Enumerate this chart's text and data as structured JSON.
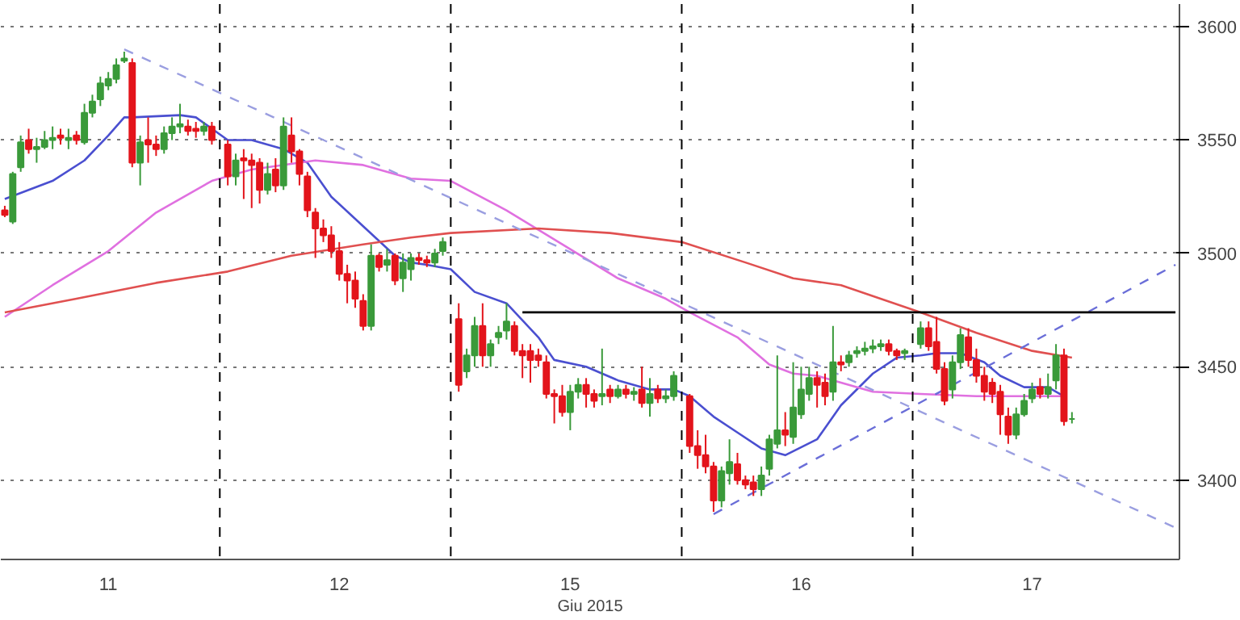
{
  "chart_data": {
    "type": "candlestick",
    "xlabel": "Giu 2015",
    "grid": "y",
    "ylim": [
      3365,
      3610
    ],
    "yticks": [
      3400,
      3450,
      3500,
      3550,
      3600
    ],
    "categories": [
      null,
      null,
      null,
      null,
      null,
      null,
      null,
      null,
      null,
      null,
      null,
      null,
      null,
      "11",
      null,
      null,
      null,
      null,
      null,
      null,
      null,
      null,
      null,
      null,
      null,
      null,
      null,
      null,
      null,
      null,
      null,
      null,
      null,
      null,
      null,
      null,
      null,
      null,
      null,
      null,
      null,
      null,
      "12",
      null,
      null,
      null,
      null,
      null,
      null,
      null,
      null,
      null,
      null,
      null,
      null,
      null,
      null,
      null,
      null,
      null,
      null,
      null,
      null,
      null,
      null,
      null,
      null,
      null,
      null,
      null,
      null,
      "15",
      null,
      null,
      null,
      null,
      null,
      null,
      null,
      null,
      null,
      null,
      null,
      null,
      null,
      null,
      null,
      null,
      null,
      null,
      null,
      null,
      null,
      null,
      null,
      null,
      null,
      null,
      null,
      null,
      "16",
      null,
      null,
      null,
      null,
      null,
      null,
      null,
      null,
      null,
      null,
      null,
      null,
      null,
      null,
      null,
      null,
      null,
      null,
      null,
      null,
      null,
      null,
      null,
      null,
      null,
      null,
      null,
      null,
      "17",
      null,
      null,
      null,
      null,
      null,
      null,
      null,
      null,
      null,
      null,
      null,
      null,
      null,
      null,
      null,
      null,
      null,
      null
    ],
    "ohlc": [
      [
        3519,
        3521,
        3516,
        3517
      ],
      [
        3514,
        3536,
        3513,
        3535
      ],
      [
        3538,
        3552,
        3536,
        3549
      ],
      [
        3550,
        3555,
        3544,
        3546
      ],
      [
        3546,
        3551,
        3540,
        3547
      ],
      [
        3547,
        3554,
        3546,
        3550
      ],
      [
        3550,
        3556,
        3546,
        3551
      ],
      [
        3552,
        3555,
        3548,
        3551
      ],
      [
        3550,
        3555,
        3546,
        3551
      ],
      [
        3552,
        3554,
        3548,
        3550
      ],
      [
        3549,
        3566,
        3548,
        3562
      ],
      [
        3562,
        3570,
        3560,
        3567
      ],
      [
        3568,
        3578,
        3565,
        3575
      ],
      [
        3574,
        3580,
        3572,
        3577
      ],
      [
        3577,
        3586,
        3575,
        3583
      ],
      [
        3585,
        3589,
        3584,
        3586
      ],
      [
        3584,
        3586,
        3538,
        3540
      ],
      [
        3540,
        3552,
        3530,
        3549
      ],
      [
        3550,
        3560,
        3540,
        3548
      ],
      [
        3548,
        3552,
        3543,
        3546
      ],
      [
        3546,
        3556,
        3544,
        3553
      ],
      [
        3553,
        3560,
        3550,
        3556
      ],
      [
        3556,
        3566,
        3553,
        3557
      ],
      [
        3556,
        3559,
        3552,
        3554
      ],
      [
        3555,
        3558,
        3551,
        3554
      ],
      [
        3554,
        3558,
        3552,
        3556
      ],
      [
        3556,
        3558,
        3548,
        3550
      ],
      null,
      [
        3548,
        3550,
        3530,
        3534
      ],
      [
        3534,
        3544,
        3530,
        3541
      ],
      [
        3542,
        3546,
        3524,
        3541
      ],
      [
        3541,
        3544,
        3520,
        3539
      ],
      [
        3540,
        3542,
        3522,
        3528
      ],
      [
        3528,
        3540,
        3526,
        3535
      ],
      [
        3537,
        3542,
        3527,
        3530
      ],
      [
        3530,
        3560,
        3528,
        3556
      ],
      [
        3552,
        3560,
        3540,
        3545
      ],
      [
        3545,
        3546,
        3530,
        3535
      ],
      [
        3534,
        3536,
        3516,
        3519
      ],
      [
        3518,
        3520,
        3498,
        3511
      ],
      [
        3511,
        3515,
        3505,
        3508
      ],
      [
        3508,
        3512,
        3498,
        3501
      ],
      [
        3501,
        3505,
        3488,
        3491
      ],
      [
        3491,
        3495,
        3478,
        3488
      ],
      [
        3488,
        3492,
        3476,
        3480
      ],
      [
        3479,
        3482,
        3466,
        3468
      ],
      [
        3468,
        3504,
        3466,
        3499
      ],
      [
        3499,
        3500,
        3492,
        3494
      ],
      [
        3495,
        3502,
        3492,
        3497
      ],
      [
        3499,
        3500,
        3486,
        3488
      ],
      [
        3489,
        3500,
        3483,
        3496
      ],
      [
        3493,
        3500,
        3488,
        3498
      ],
      [
        3498,
        3500,
        3495,
        3497
      ],
      [
        3497,
        3499,
        3494,
        3496
      ],
      [
        3496,
        3502,
        3494,
        3500
      ],
      [
        3501,
        3507,
        3499,
        3505
      ],
      null,
      [
        3471,
        3478,
        3439,
        3442
      ],
      [
        3448,
        3458,
        3445,
        3455
      ],
      [
        3455,
        3472,
        3450,
        3468
      ],
      [
        3468,
        3478,
        3450,
        3455
      ],
      [
        3455,
        3462,
        3450,
        3460
      ],
      [
        3463,
        3468,
        3460,
        3465
      ],
      [
        3466,
        3478,
        3462,
        3470
      ],
      [
        3468,
        3470,
        3455,
        3457
      ],
      [
        3457,
        3460,
        3445,
        3455
      ],
      [
        3457,
        3460,
        3443,
        3453
      ],
      [
        3455,
        3458,
        3450,
        3453
      ],
      [
        3452,
        3455,
        3436,
        3438
      ],
      [
        3438,
        3440,
        3425,
        3437
      ],
      [
        3437,
        3442,
        3428,
        3430
      ],
      [
        3430,
        3442,
        3422,
        3439
      ],
      [
        3439,
        3445,
        3436,
        3442
      ],
      [
        3442,
        3445,
        3432,
        3438
      ],
      [
        3438,
        3440,
        3432,
        3435
      ],
      [
        3437,
        3458,
        3433,
        3438
      ],
      [
        3440,
        3442,
        3434,
        3437
      ],
      [
        3437,
        3442,
        3436,
        3440
      ],
      [
        3440,
        3442,
        3436,
        3438
      ],
      [
        3438,
        3441,
        3435,
        3439
      ],
      [
        3440,
        3450,
        3432,
        3434
      ],
      [
        3434,
        3445,
        3428,
        3438
      ],
      [
        3440,
        3442,
        3434,
        3436
      ],
      [
        3436,
        3440,
        3434,
        3437
      ],
      [
        3437,
        3448,
        3435,
        3446
      ],
      null,
      [
        3437,
        3438,
        3412,
        3415
      ],
      [
        3415,
        3422,
        3405,
        3411
      ],
      [
        3411,
        3420,
        3403,
        3406
      ],
      [
        3406,
        3408,
        3386,
        3391
      ],
      [
        3391,
        3406,
        3388,
        3404
      ],
      [
        3403,
        3418,
        3398,
        3408
      ],
      [
        3407,
        3412,
        3398,
        3400
      ],
      [
        3400,
        3402,
        3396,
        3398
      ],
      [
        3399,
        3402,
        3393,
        3396
      ],
      [
        3396,
        3406,
        3393,
        3402
      ],
      [
        3405,
        3420,
        3402,
        3418
      ],
      [
        3416,
        3455,
        3414,
        3422
      ],
      [
        3422,
        3430,
        3415,
        3420
      ],
      [
        3419,
        3452,
        3416,
        3432
      ],
      [
        3429,
        3450,
        3427,
        3440
      ],
      [
        3438,
        3450,
        3435,
        3445
      ],
      [
        3445,
        3448,
        3432,
        3442
      ],
      [
        3443,
        3447,
        3433,
        3437
      ],
      [
        3439,
        3468,
        3435,
        3452
      ],
      [
        3452,
        3455,
        3448,
        3451
      ],
      [
        3452,
        3457,
        3450,
        3455
      ],
      [
        3456,
        3459,
        3454,
        3457
      ],
      [
        3457,
        3461,
        3455,
        3458
      ],
      [
        3458,
        3462,
        3456,
        3459
      ],
      [
        3459,
        3462,
        3457,
        3460
      ],
      [
        3460,
        3462,
        3455,
        3457
      ],
      [
        3457,
        3458,
        3453,
        3455
      ],
      [
        3456,
        3458,
        3453,
        3457
      ],
      null,
      [
        3460,
        3470,
        3458,
        3467
      ],
      [
        3467,
        3470,
        3457,
        3459
      ],
      [
        3461,
        3472,
        3447,
        3449
      ],
      [
        3449,
        3452,
        3433,
        3435
      ],
      [
        3440,
        3455,
        3436,
        3452
      ],
      [
        3452,
        3467,
        3449,
        3464
      ],
      [
        3463,
        3467,
        3450,
        3453
      ],
      [
        3453,
        3458,
        3443,
        3446
      ],
      [
        3446,
        3450,
        3435,
        3439
      ],
      [
        3443,
        3445,
        3434,
        3438
      ],
      [
        3439,
        3442,
        3420,
        3429
      ],
      [
        3428,
        3432,
        3416,
        3420
      ],
      [
        3420,
        3432,
        3418,
        3429
      ],
      [
        3429,
        3438,
        3428,
        3435
      ],
      [
        3436,
        3443,
        3434,
        3440
      ],
      [
        3441,
        3445,
        3436,
        3438
      ],
      [
        3438,
        3447,
        3436,
        3441
      ],
      [
        3444,
        3460,
        3440,
        3455
      ],
      [
        3455,
        3458,
        3424,
        3426
      ],
      [
        3427,
        3430,
        3425,
        3427
      ],
      null,
      null,
      null,
      null,
      null,
      null,
      null,
      null,
      null,
      null,
      null,
      null,
      null
    ],
    "series": [
      {
        "type": "line",
        "color": "#4a4fd0",
        "line_style": "solid",
        "values": [
          3524,
          null,
          null,
          null,
          null,
          null,
          3532,
          null,
          null,
          null,
          3541,
          null,
          null,
          3552,
          null,
          3560,
          3560,
          null,
          null,
          null,
          null,
          null,
          3561,
          null,
          3560,
          null,
          null,
          null,
          3550,
          null,
          null,
          3550,
          null,
          null,
          null,
          3546,
          null,
          null,
          3540,
          null,
          null,
          3525,
          null,
          null,
          null,
          3512,
          null,
          null,
          null,
          3499,
          null,
          3496,
          null,
          3495,
          null,
          null,
          3493,
          null,
          null,
          3483,
          null,
          null,
          null,
          3478,
          null,
          null,
          null,
          3463,
          null,
          3453,
          null,
          null,
          null,
          3450,
          null,
          null,
          null,
          3444,
          null,
          null,
          null,
          3440,
          null,
          null,
          3440,
          null,
          3437,
          null,
          null,
          3428,
          null,
          null,
          3421,
          null,
          null,
          3414,
          null,
          null,
          3411,
          null,
          null,
          null,
          3418,
          null,
          null,
          3433,
          null,
          null,
          null,
          3447,
          null,
          null,
          3454,
          null,
          null,
          3455,
          null,
          3456,
          null,
          null,
          3456,
          null,
          null,
          3452,
          null,
          3446,
          null,
          null,
          3441,
          null,
          null,
          3441,
          null,
          3437,
          null,
          null,
          null,
          null,
          null,
          null,
          null,
          null,
          null,
          null,
          null,
          null,
          null,
          null
        ]
      },
      {
        "type": "line",
        "color": "#e070e0",
        "line_style": "solid",
        "values": [
          3472,
          null,
          null,
          null,
          null,
          null,
          3486,
          null,
          null,
          null,
          null,
          null,
          null,
          3501,
          null,
          null,
          null,
          null,
          null,
          3518,
          null,
          null,
          null,
          null,
          null,
          null,
          3532,
          null,
          null,
          null,
          null,
          3537,
          null,
          null,
          null,
          null,
          null,
          3540,
          null,
          3541,
          null,
          null,
          null,
          null,
          null,
          3539,
          null,
          null,
          null,
          null,
          null,
          3533,
          null,
          null,
          null,
          null,
          3532,
          null,
          null,
          null,
          null,
          null,
          null,
          3519,
          null,
          null,
          null,
          null,
          null,
          null,
          3504,
          null,
          null,
          null,
          null,
          null,
          null,
          3489,
          null,
          null,
          null,
          null,
          null,
          3480,
          null,
          null,
          3474,
          null,
          null,
          null,
          null,
          null,
          3463,
          null,
          null,
          null,
          3451,
          null,
          null,
          3447,
          null,
          null,
          3446,
          null,
          null,
          null,
          null,
          null,
          null,
          3439,
          null,
          null,
          null,
          null,
          null,
          3438,
          null,
          null,
          null,
          null,
          null,
          null,
          3437,
          null,
          null,
          null,
          null,
          null,
          null,
          null,
          null,
          null,
          null,
          3437,
          null,
          null,
          null,
          null,
          null,
          null,
          null,
          null,
          null,
          null,
          null,
          null,
          null,
          null
        ]
      },
      {
        "type": "line",
        "color": "#e05050",
        "line_style": "solid",
        "values": [
          3474,
          null,
          null,
          null,
          null,
          null,
          null,
          null,
          null,
          3480,
          null,
          null,
          null,
          null,
          null,
          null,
          null,
          null,
          null,
          3487,
          null,
          null,
          null,
          null,
          null,
          null,
          null,
          null,
          3492,
          null,
          null,
          null,
          null,
          null,
          null,
          null,
          3499,
          null,
          null,
          null,
          null,
          null,
          null,
          null,
          null,
          3504,
          null,
          null,
          null,
          null,
          null,
          3507,
          null,
          null,
          null,
          null,
          3509,
          null,
          null,
          null,
          null,
          null,
          null,
          null,
          null,
          null,
          null,
          3511,
          null,
          null,
          null,
          null,
          null,
          null,
          null,
          null,
          3509,
          null,
          null,
          null,
          null,
          null,
          null,
          null,
          null,
          3505,
          null,
          null,
          null,
          null,
          null,
          null,
          null,
          3496,
          null,
          null,
          null,
          null,
          null,
          3489,
          null,
          null,
          null,
          null,
          null,
          3486,
          null,
          null,
          null,
          null,
          null,
          null,
          null,
          null,
          null,
          3474,
          null,
          null,
          null,
          null,
          null,
          null,
          3465,
          null,
          null,
          null,
          null,
          null,
          null,
          3457,
          null,
          null,
          null,
          null,
          3454,
          null,
          null,
          null,
          null,
          null,
          null,
          null,
          null,
          null,
          null,
          null,
          null,
          null
        ]
      },
      {
        "type": "line",
        "color": "#9a9ee0",
        "line_style": "dashed",
        "values": [
          null,
          null,
          null,
          null,
          null,
          null,
          null,
          null,
          null,
          null,
          null,
          null,
          null,
          null,
          null,
          3590,
          null,
          null,
          null,
          null,
          null,
          null,
          null,
          null,
          null,
          null,
          null,
          null,
          null,
          null,
          null,
          null,
          null,
          null,
          null,
          null,
          null,
          null,
          null,
          null,
          null,
          null,
          null,
          null,
          null,
          null,
          null,
          null,
          null,
          null,
          null,
          null,
          null,
          null,
          null,
          null,
          null,
          null,
          null,
          null,
          null,
          null,
          null,
          null,
          null,
          null,
          null,
          null,
          null,
          null,
          null,
          null,
          null,
          null,
          null,
          null,
          null,
          null,
          null,
          null,
          null,
          null,
          null,
          null,
          null,
          null,
          null,
          null,
          null,
          null,
          null,
          null,
          null,
          null,
          null,
          null,
          null,
          null,
          null,
          null,
          null,
          null,
          null,
          null,
          null,
          null,
          null,
          null,
          null,
          null,
          null,
          null,
          null,
          null,
          null,
          null,
          null,
          null,
          null,
          null,
          null,
          null,
          null,
          null,
          null,
          null,
          null,
          null,
          null,
          null,
          null,
          null,
          null,
          null,
          null,
          null,
          null,
          null,
          null,
          null,
          null,
          null,
          null,
          null,
          null,
          null,
          null,
          3379
        ]
      },
      {
        "type": "line",
        "color": "#6a6ed8",
        "line_style": "dashed",
        "values": [
          null,
          null,
          null,
          null,
          null,
          null,
          null,
          null,
          null,
          null,
          null,
          null,
          null,
          null,
          null,
          null,
          null,
          null,
          null,
          null,
          null,
          null,
          null,
          null,
          null,
          null,
          null,
          null,
          null,
          null,
          null,
          null,
          null,
          null,
          null,
          null,
          null,
          null,
          null,
          null,
          null,
          null,
          null,
          null,
          null,
          null,
          null,
          null,
          null,
          null,
          null,
          null,
          null,
          null,
          null,
          null,
          null,
          null,
          null,
          null,
          null,
          null,
          null,
          null,
          null,
          null,
          null,
          null,
          null,
          null,
          null,
          null,
          null,
          null,
          null,
          null,
          null,
          null,
          null,
          null,
          null,
          null,
          null,
          null,
          null,
          null,
          null,
          null,
          null,
          3385,
          null,
          null,
          null,
          null,
          null,
          null,
          null,
          null,
          null,
          null,
          null,
          null,
          null,
          null,
          null,
          null,
          null,
          null,
          null,
          null,
          null,
          null,
          null,
          null,
          null,
          null,
          null,
          null,
          null,
          null,
          null,
          null,
          null,
          null,
          null,
          null,
          null,
          null,
          null,
          null,
          null,
          null,
          null,
          null,
          null,
          null,
          null,
          null,
          null,
          null,
          null,
          null,
          null,
          null,
          null,
          null,
          null,
          3495
        ]
      },
      {
        "type": "line",
        "color": "#000000",
        "line_style": "solid",
        "values": [
          null,
          null,
          null,
          null,
          null,
          null,
          null,
          null,
          null,
          null,
          null,
          null,
          null,
          null,
          null,
          null,
          null,
          null,
          null,
          null,
          null,
          null,
          null,
          null,
          null,
          null,
          null,
          null,
          null,
          null,
          null,
          null,
          null,
          null,
          null,
          null,
          null,
          null,
          null,
          null,
          null,
          null,
          null,
          null,
          null,
          null,
          null,
          null,
          null,
          null,
          null,
          null,
          null,
          null,
          null,
          null,
          null,
          null,
          null,
          null,
          null,
          null,
          null,
          null,
          null,
          3474,
          null,
          null,
          null,
          null,
          null,
          null,
          null,
          null,
          null,
          null,
          null,
          null,
          null,
          null,
          null,
          null,
          null,
          null,
          null,
          null,
          null,
          null,
          null,
          null,
          null,
          null,
          null,
          null,
          null,
          null,
          null,
          null,
          null,
          null,
          null,
          null,
          null,
          null,
          null,
          null,
          null,
          null,
          null,
          null,
          null,
          null,
          null,
          null,
          null,
          null,
          null,
          null,
          null,
          null,
          null,
          null,
          null,
          null,
          null,
          null,
          null,
          null,
          null,
          null,
          null,
          null,
          null,
          null,
          null,
          null,
          null,
          null,
          null,
          null,
          null,
          null,
          null,
          null,
          null,
          null,
          null,
          3474
        ]
      }
    ]
  }
}
